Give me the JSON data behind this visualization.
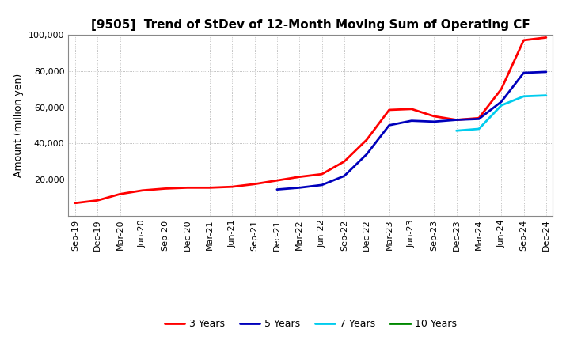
{
  "title": "[9505]  Trend of StDev of 12-Month Moving Sum of Operating CF",
  "ylabel": "Amount (million yen)",
  "background_color": "#ffffff",
  "grid_color": "#aaaaaa",
  "ylim": [
    0,
    100000
  ],
  "yticks": [
    20000,
    40000,
    60000,
    80000,
    100000
  ],
  "legend": [
    "3 Years",
    "5 Years",
    "7 Years",
    "10 Years"
  ],
  "legend_colors": [
    "#ff0000",
    "#0000bb",
    "#00ccee",
    "#008800"
  ],
  "x_labels": [
    "Sep-19",
    "Dec-19",
    "Mar-20",
    "Jun-20",
    "Sep-20",
    "Dec-20",
    "Mar-21",
    "Jun-21",
    "Sep-21",
    "Dec-21",
    "Mar-22",
    "Jun-22",
    "Sep-22",
    "Dec-22",
    "Mar-23",
    "Jun-23",
    "Sep-23",
    "Dec-23",
    "Mar-24",
    "Jun-24",
    "Sep-24",
    "Dec-24"
  ],
  "series_3y": [
    7000,
    8500,
    12000,
    14000,
    15000,
    15500,
    15500,
    16000,
    17500,
    19500,
    21500,
    23000,
    30000,
    42000,
    58500,
    59000,
    55000,
    53000,
    54000,
    70000,
    97000,
    98500
  ],
  "series_5y": [
    null,
    null,
    null,
    null,
    null,
    null,
    null,
    null,
    null,
    14500,
    15500,
    17000,
    22000,
    34000,
    50000,
    52500,
    52000,
    53000,
    53500,
    63000,
    79000,
    79500
  ],
  "series_7y": [
    null,
    null,
    null,
    null,
    null,
    null,
    null,
    null,
    null,
    null,
    null,
    null,
    null,
    null,
    null,
    null,
    null,
    47000,
    48000,
    61000,
    66000,
    66500
  ],
  "series_10y": [
    null,
    null,
    null,
    null,
    null,
    null,
    null,
    null,
    null,
    null,
    null,
    null,
    null,
    null,
    null,
    null,
    null,
    null,
    null,
    null,
    null,
    null
  ]
}
